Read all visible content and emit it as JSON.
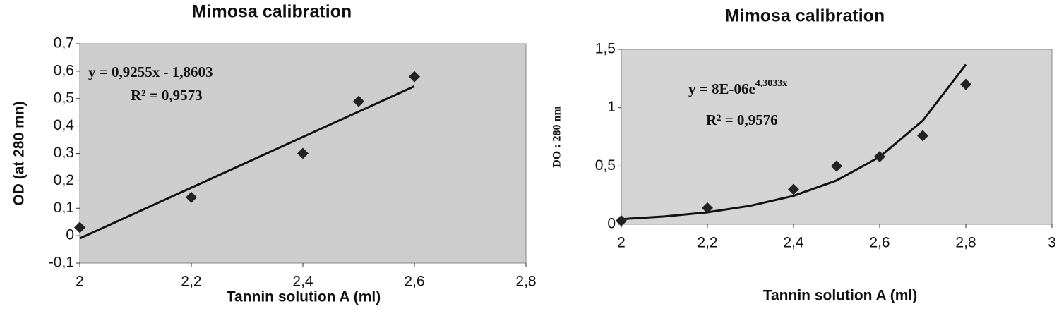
{
  "chart_data": [
    {
      "type": "scatter",
      "title": "Mimosa calibration",
      "x_label": "Tannin solution A (ml)",
      "y_label": "OD (at  280 mn)",
      "points": {
        "x": [
          2,
          2.2,
          2.4,
          2.5,
          2.6
        ],
        "values": [
          0.03,
          0.14,
          0.3,
          0.49,
          0.58
        ],
        "color": "#222222"
      },
      "trendline": {
        "x": [
          2,
          2.6
        ],
        "values": [
          -0.01,
          0.545
        ],
        "color": "#111111"
      },
      "equation": [
        "y = 0,9255x - 1,8603"
      ],
      "r_squared": "R² = 0,9573",
      "xlim": [
        2,
        2.8
      ],
      "ylim": [
        -0.1,
        0.7
      ],
      "xticks": [
        2,
        {
          "value": 2.2,
          "label": "2,2"
        },
        {
          "value": 2.4,
          "label": "2,4"
        },
        {
          "value": 2.6,
          "label": "2,6"
        },
        {
          "value": 2.8,
          "label": "2,8"
        }
      ],
      "yticks": [
        {
          "value": -0.1,
          "label": "-0,1"
        },
        0,
        {
          "value": 0.1,
          "label": "0,1"
        },
        {
          "value": 0.2,
          "label": "0,2"
        },
        {
          "value": 0.3,
          "label": "0,3"
        },
        {
          "value": 0.4,
          "label": "0,4"
        },
        {
          "value": 0.5,
          "label": "0,5"
        },
        {
          "value": 0.6,
          "label": "0,6"
        },
        {
          "value": 0.7,
          "label": "0,7"
        }
      ],
      "plot_color": "#cdcdcd"
    },
    {
      "type": "scatter",
      "title": "Mimosa calibration",
      "x_label": "Tannin solution A (ml)",
      "y_label": "DO : 280 nm",
      "points": {
        "x": [
          2,
          2.2,
          2.4,
          2.5,
          2.6,
          2.7,
          2.8
        ],
        "values": [
          0.03,
          0.14,
          0.3,
          0.5,
          0.58,
          0.76,
          1.2
        ],
        "color": "#222222"
      },
      "trendline": {
        "x": [
          2,
          2.1,
          2.2,
          2.3,
          2.4,
          2.5,
          2.6,
          2.7,
          2.8
        ],
        "values": [
          0.044,
          0.067,
          0.103,
          0.159,
          0.244,
          0.376,
          0.578,
          0.889,
          1.37
        ],
        "color": "#111111"
      },
      "equation": [
        "y = 8E-06e",
        "4,3033x"
      ],
      "r_squared": "R² = 0,9576",
      "xlim": [
        2,
        3
      ],
      "ylim": [
        0,
        1.5
      ],
      "xticks": [
        2,
        {
          "value": 2.2,
          "label": "2,2"
        },
        {
          "value": 2.4,
          "label": "2,4"
        },
        {
          "value": 2.6,
          "label": "2,6"
        },
        {
          "value": 2.8,
          "label": "2,8"
        },
        3
      ],
      "yticks": [
        0,
        {
          "value": 0.5,
          "label": "0,5"
        },
        1,
        {
          "value": 1.5,
          "label": "1,5"
        }
      ],
      "plot_color": "#d4d4d4"
    }
  ]
}
